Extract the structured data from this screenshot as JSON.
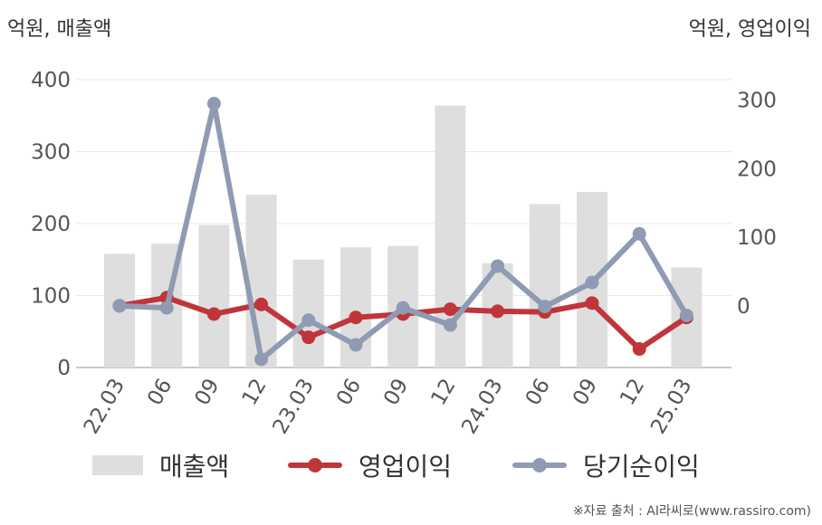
{
  "chart_data": {
    "type": "bar+line",
    "categories": [
      "22.03",
      "06",
      "09",
      "12",
      "23.03",
      "06",
      "09",
      "12",
      "24.03",
      "06",
      "09",
      "12",
      "25.03"
    ],
    "left_axis": {
      "unit_label": "억원, 매출액",
      "ylim": [
        0,
        400
      ],
      "ticks": [
        0,
        100,
        200,
        300,
        400
      ]
    },
    "right_axis": {
      "unit_label": "억원, 영업이익",
      "ylim": [
        -90,
        330
      ],
      "ticks": [
        0,
        100,
        200,
        300
      ]
    },
    "series": [
      {
        "name": "매출액",
        "kind": "bar",
        "axis": "left",
        "color": "#dedede",
        "values": [
          158,
          172,
          198,
          240,
          150,
          167,
          169,
          364,
          145,
          227,
          244,
          0,
          139
        ]
      },
      {
        "name": "영업이익",
        "kind": "line",
        "axis": "right",
        "color": "#c0353a",
        "values": [
          0,
          12,
          -12,
          2,
          -46,
          -17,
          -12,
          -5,
          -8,
          -9,
          4,
          -63,
          -17
        ]
      },
      {
        "name": "당기순이익",
        "kind": "line",
        "axis": "right",
        "color": "#8f9bb3",
        "values": [
          0,
          -3,
          295,
          -78,
          -21,
          -57,
          -3,
          -28,
          58,
          -1,
          34,
          105,
          -14
        ]
      }
    ],
    "grid": true,
    "legend": "bottom"
  },
  "source": "※자료 출처 : AI라씨로(www.rassiro.com)"
}
